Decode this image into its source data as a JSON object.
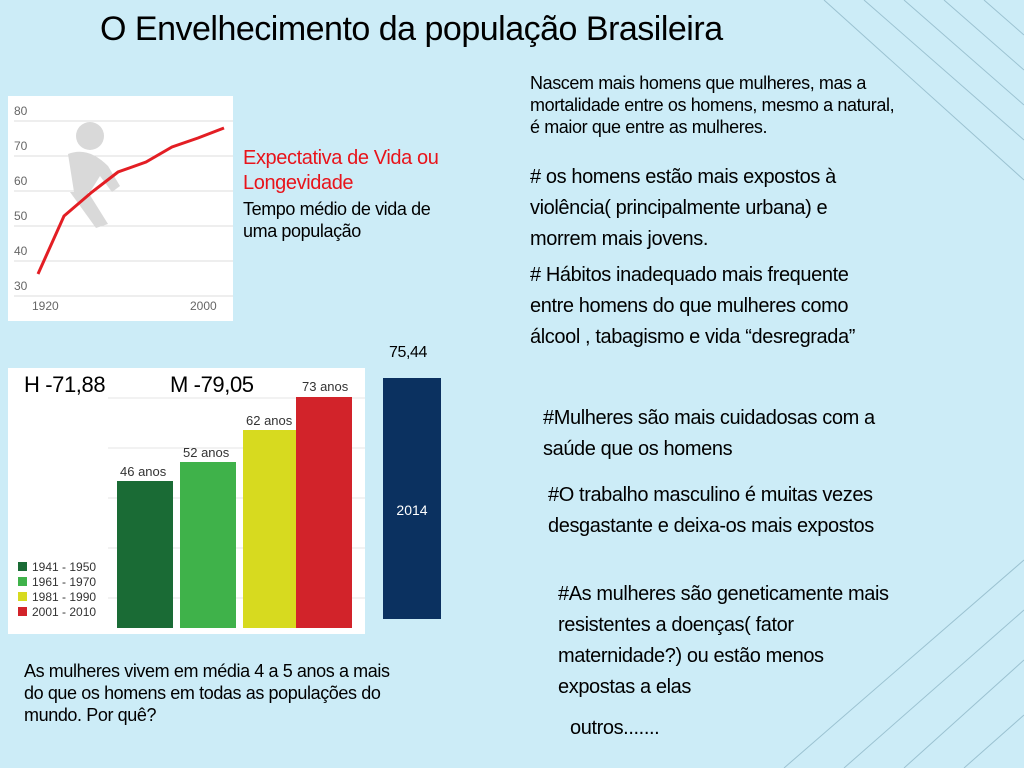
{
  "slide": {
    "title": "O Envelhecimento da população Brasileira"
  },
  "life_chart": {
    "y_ticks": [
      "80",
      "70",
      "60",
      "50",
      "40",
      "30"
    ],
    "x_ticks": [
      "1920",
      "2000"
    ],
    "line_color": "#e31e24"
  },
  "definition": {
    "heading_line1": "Expectativa de Vida  ou",
    "heading_line2": "Longevidade",
    "body_line1": "Tempo médio de vida de",
    "body_line2": "uma população"
  },
  "gender_values": {
    "male": "H -71,88",
    "female": "M -79,05"
  },
  "decades_chart": {
    "legend": [
      "1941 - 1950",
      "1961 - 1970",
      "1981 - 1990",
      "2001 - 2010"
    ],
    "labels": [
      "46 anos",
      "52 anos",
      "62 anos",
      "73 anos"
    ],
    "colors": [
      "#1a6b35",
      "#3fb24a",
      "#d7da1f",
      "#d2232a"
    ]
  },
  "year_bar": {
    "value": "75,44",
    "year": "2014",
    "color": "#0b3160"
  },
  "question": {
    "line1": "As  mulheres vivem em média  4 a 5 anos a mais",
    "line2": "do que os homens em todas as populações do",
    "line3": "mundo. Por quê?"
  },
  "reasons": {
    "intro_1": "Nascem mais homens que mulheres, mas a",
    "intro_2": "mortalidade entre os homens, mesmo a natural,",
    "intro_3": "é maior que entre as mulheres.",
    "violence_1": " # os homens estão mais expostos à",
    "violence_2": "violência( principalmente urbana) e",
    "violence_3": "morrem mais jovens.",
    "habits_1": "# Hábitos inadequado mais frequente",
    "habits_2": "entre homens do que mulheres como",
    "habits_3": "álcool , tabagismo e vida “desregrada”",
    "care_1": "#Mulheres são mais cuidadosas com a",
    "care_2": "saúde que os homens",
    "work_1": "#O trabalho masculino é muitas vezes",
    "work_2": "desgastante e deixa-os mais expostos",
    "genetic_1": "#As mulheres são geneticamente mais",
    "genetic_2": "resistentes a doenças( fator",
    "genetic_3": "maternidade?) ou estão menos",
    "genetic_4": "expostas a elas",
    "others": "outros......."
  }
}
